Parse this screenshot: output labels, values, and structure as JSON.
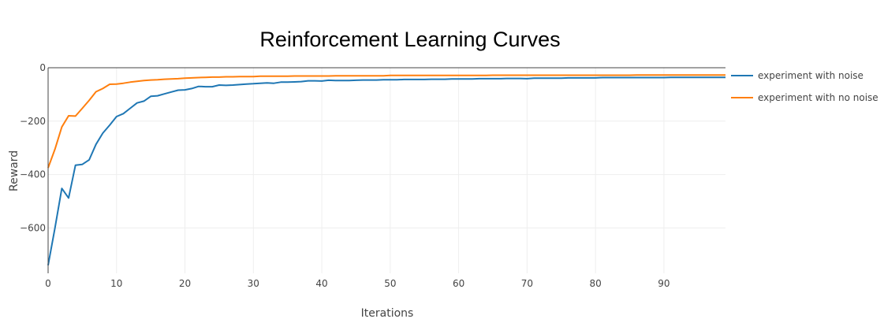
{
  "chart_data": {
    "type": "line",
    "title": "Reinforcement Learning Curves",
    "xlabel": "Iterations",
    "ylabel": "Reward",
    "xlim": [
      0,
      99
    ],
    "ylim": [
      -770,
      0
    ],
    "xticks": [
      0,
      10,
      20,
      30,
      40,
      50,
      60,
      70,
      80,
      90
    ],
    "yticks": [
      0,
      -200,
      -400,
      -600
    ],
    "grid": true,
    "legend_position": "right",
    "series": [
      {
        "name": "experiment with noise",
        "color": "#1f77b4",
        "x": [
          0,
          1,
          2,
          3,
          4,
          5,
          6,
          7,
          8,
          9,
          10,
          11,
          12,
          13,
          14,
          15,
          16,
          17,
          18,
          19,
          20,
          21,
          22,
          23,
          24,
          25,
          26,
          27,
          28,
          29,
          30,
          31,
          32,
          33,
          34,
          35,
          36,
          37,
          38,
          39,
          40,
          41,
          42,
          43,
          44,
          45,
          46,
          47,
          48,
          49,
          50,
          51,
          52,
          53,
          54,
          55,
          56,
          57,
          58,
          59,
          60,
          61,
          62,
          63,
          64,
          65,
          66,
          67,
          68,
          69,
          70,
          71,
          72,
          73,
          74,
          75,
          76,
          77,
          78,
          79,
          80,
          81,
          82,
          83,
          84,
          85,
          86,
          87,
          88,
          89,
          90,
          91,
          92,
          93,
          94,
          95,
          96,
          97,
          98,
          99
        ],
        "values": [
          -740,
          -600,
          -452,
          -488,
          -365,
          -362,
          -345,
          -287,
          -245,
          -215,
          -183,
          -172,
          -152,
          -132,
          -125,
          -107,
          -105,
          -98,
          -91,
          -84,
          -83,
          -78,
          -70,
          -71,
          -71,
          -65,
          -66,
          -65,
          -63,
          -61,
          -60,
          -58,
          -57,
          -58,
          -54,
          -54,
          -53,
          -52,
          -49,
          -49,
          -50,
          -47,
          -48,
          -48,
          -48,
          -47,
          -46,
          -46,
          -46,
          -45,
          -45,
          -45,
          -44,
          -44,
          -44,
          -44,
          -43,
          -43,
          -43,
          -42,
          -42,
          -42,
          -42,
          -41,
          -41,
          -41,
          -41,
          -40,
          -40,
          -40,
          -41,
          -39,
          -39,
          -39,
          -39,
          -39,
          -38,
          -38,
          -38,
          -38,
          -38,
          -37,
          -37,
          -37,
          -37,
          -37,
          -37,
          -37,
          -37,
          -37,
          -37,
          -36,
          -36,
          -36,
          -36,
          -36,
          -36,
          -36,
          -36,
          -36
        ]
      },
      {
        "name": "experiment with no noise",
        "color": "#ff7f0e",
        "x": [
          0,
          1,
          2,
          3,
          4,
          5,
          6,
          7,
          8,
          9,
          10,
          11,
          12,
          13,
          14,
          15,
          16,
          17,
          18,
          19,
          20,
          21,
          22,
          23,
          24,
          25,
          26,
          27,
          28,
          29,
          30,
          31,
          32,
          33,
          34,
          35,
          36,
          37,
          38,
          39,
          40,
          41,
          42,
          43,
          44,
          45,
          46,
          47,
          48,
          49,
          50,
          51,
          52,
          53,
          54,
          55,
          56,
          57,
          58,
          59,
          60,
          61,
          62,
          63,
          64,
          65,
          66,
          67,
          68,
          69,
          70,
          71,
          72,
          73,
          74,
          75,
          76,
          77,
          78,
          79,
          80,
          81,
          82,
          83,
          84,
          85,
          86,
          87,
          88,
          89,
          90,
          91,
          92,
          93,
          94,
          95,
          96,
          97,
          98,
          99
        ],
        "values": [
          -375,
          -305,
          -222,
          -180,
          -181,
          -152,
          -122,
          -90,
          -78,
          -62,
          -61,
          -58,
          -54,
          -51,
          -48,
          -46,
          -45,
          -43,
          -42,
          -41,
          -39,
          -38,
          -37,
          -36,
          -35,
          -35,
          -34,
          -34,
          -33,
          -33,
          -33,
          -32,
          -32,
          -32,
          -32,
          -32,
          -31,
          -31,
          -31,
          -31,
          -31,
          -31,
          -30,
          -30,
          -30,
          -30,
          -30,
          -30,
          -30,
          -30,
          -29,
          -29,
          -29,
          -29,
          -29,
          -29,
          -29,
          -29,
          -29,
          -29,
          -29,
          -29,
          -29,
          -29,
          -29,
          -28,
          -28,
          -28,
          -28,
          -28,
          -28,
          -28,
          -28,
          -28,
          -28,
          -28,
          -28,
          -28,
          -28,
          -28,
          -28,
          -28,
          -28,
          -28,
          -28,
          -28,
          -27,
          -27,
          -27,
          -27,
          -27,
          -27,
          -27,
          -27,
          -27,
          -27,
          -27,
          -27,
          -27,
          -27
        ]
      }
    ]
  }
}
